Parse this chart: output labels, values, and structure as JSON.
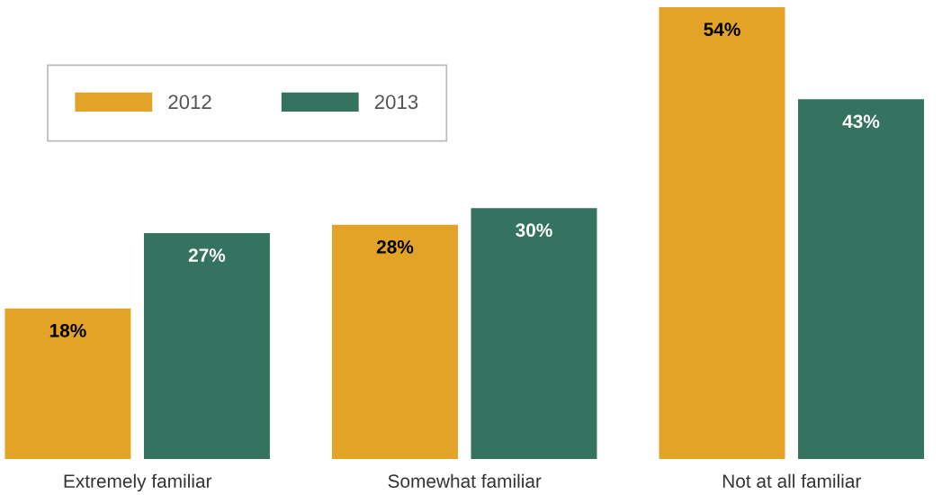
{
  "chart_data": {
    "type": "bar",
    "categories": [
      "Extremely familiar",
      "Somewhat familiar",
      "Not at all familiar"
    ],
    "series": [
      {
        "name": "2012",
        "color": "#e2a327",
        "values": [
          18,
          28,
          54
        ],
        "value_labels": [
          "18%",
          "28%",
          "54%"
        ]
      },
      {
        "name": "2013",
        "color": "#34735f",
        "values": [
          27,
          30,
          43
        ],
        "value_labels": [
          "27%",
          "30%",
          "43%"
        ]
      }
    ],
    "legend": "top left",
    "grid": false
  }
}
